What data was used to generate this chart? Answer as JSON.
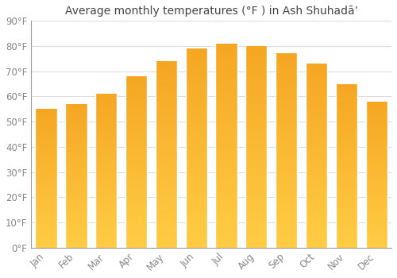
{
  "title": "Average monthly temperatures (°F ) in Ash Shuhadā’",
  "months": [
    "Jan",
    "Feb",
    "Mar",
    "Apr",
    "May",
    "Jun",
    "Jul",
    "Aug",
    "Sep",
    "Oct",
    "Nov",
    "Dec"
  ],
  "temperatures": [
    55,
    57,
    61,
    68,
    74,
    79,
    81,
    80,
    77,
    73,
    65,
    58
  ],
  "bar_color_top": "#F5A623",
  "bar_color_bottom": "#FFCC44",
  "bar_edge_color": "#E8E8E8",
  "background_color": "#FFFFFF",
  "plot_bg_color": "#FFFFFF",
  "grid_color": "#DDDDDD",
  "spine_color": "#999999",
  "ylim": [
    0,
    90
  ],
  "yticks": [
    0,
    10,
    20,
    30,
    40,
    50,
    60,
    70,
    80,
    90
  ],
  "title_fontsize": 10,
  "tick_fontsize": 8.5
}
